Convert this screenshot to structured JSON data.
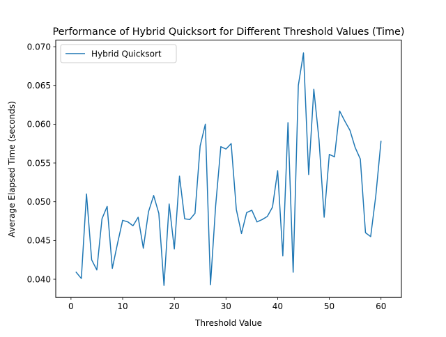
{
  "chart_data": {
    "type": "line",
    "title": "Performance of Hybrid Quicksort for Different Threshold Values (Time)",
    "xlabel": "Threshold Value",
    "ylabel": "Average Elapsed Time (seconds)",
    "xlim": [
      -2.95,
      63.95
    ],
    "ylim": [
      0.03765,
      0.07085
    ],
    "xticks": [
      0,
      10,
      20,
      30,
      40,
      50,
      60
    ],
    "xtick_labels": [
      "0",
      "10",
      "20",
      "30",
      "40",
      "50",
      "60"
    ],
    "yticks": [
      0.04,
      0.045,
      0.05,
      0.055,
      0.06,
      0.065,
      0.07
    ],
    "ytick_labels": [
      "0.040",
      "0.045",
      "0.050",
      "0.055",
      "0.060",
      "0.065",
      "0.070"
    ],
    "grid": false,
    "legend": {
      "position": "upper-left"
    },
    "series": [
      {
        "name": "Hybrid Quicksort",
        "color": "#1f77b4",
        "x": [
          1,
          2,
          3,
          4,
          5,
          6,
          7,
          8,
          9,
          10,
          11,
          12,
          13,
          14,
          15,
          16,
          17,
          18,
          19,
          20,
          21,
          22,
          23,
          24,
          25,
          26,
          27,
          28,
          29,
          30,
          31,
          32,
          33,
          34,
          35,
          36,
          37,
          38,
          39,
          40,
          41,
          42,
          43,
          44,
          45,
          46,
          47,
          48,
          49,
          50,
          51,
          52,
          53,
          54,
          55,
          56,
          57,
          58,
          59,
          60
        ],
        "y": [
          0.0409,
          0.0401,
          0.051,
          0.0425,
          0.0412,
          0.0478,
          0.0494,
          0.0414,
          0.0446,
          0.0476,
          0.0474,
          0.0469,
          0.048,
          0.044,
          0.0487,
          0.0508,
          0.0485,
          0.0392,
          0.0497,
          0.0439,
          0.0533,
          0.0478,
          0.0477,
          0.0485,
          0.0572,
          0.06,
          0.0393,
          0.0495,
          0.0571,
          0.0568,
          0.0575,
          0.049,
          0.0459,
          0.0486,
          0.0489,
          0.0474,
          0.0477,
          0.0481,
          0.0493,
          0.054,
          0.043,
          0.0602,
          0.0409,
          0.065,
          0.0692,
          0.0535,
          0.0645,
          0.058,
          0.048,
          0.0561,
          0.0558,
          0.0617,
          0.0604,
          0.0592,
          0.057,
          0.0555,
          0.046,
          0.0455,
          0.0508,
          0.0578
        ]
      }
    ]
  }
}
